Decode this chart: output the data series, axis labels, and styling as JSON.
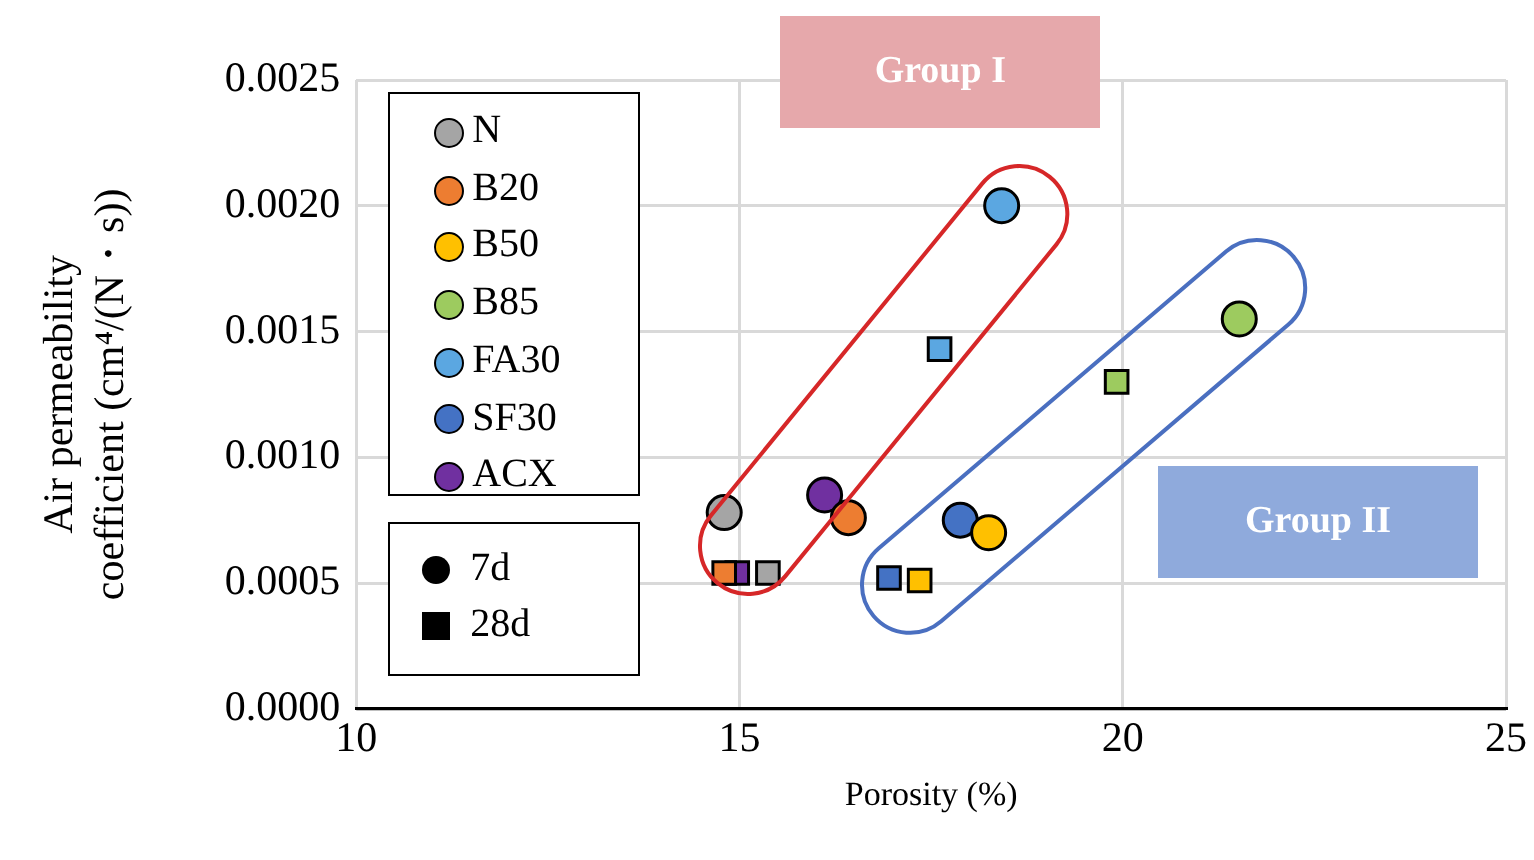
{
  "chart_data": {
    "type": "scatter",
    "xlabel": "Porosity (%)",
    "ylabel": "Air permeability\ncoefficient (cm⁴/(N・s))",
    "xlim": [
      10,
      25
    ],
    "xticks": [
      10,
      15,
      20,
      25
    ],
    "ylim": [
      0,
      0.0025
    ],
    "yticks": [
      {
        "value": 0,
        "label": "0.0000"
      },
      {
        "value": 0.0005,
        "label": "0.0005"
      },
      {
        "value": 0.001,
        "label": "0.0010"
      },
      {
        "value": 0.0015,
        "label": "0.0015"
      },
      {
        "value": 0.002,
        "label": "0.0020"
      },
      {
        "value": 0.0025,
        "label": "0.0025"
      }
    ],
    "grid": true,
    "legend": "top left",
    "annotations": [
      "Group I",
      "Group II",
      "7d",
      "28d"
    ],
    "series": [
      {
        "name": "N",
        "color": "#a5a5a5",
        "marker": "circle",
        "x": [
          14.8
        ],
        "values": [
          0.00078
        ]
      },
      {
        "name": "B20",
        "color": "#ed7d31",
        "marker": "circle",
        "x": [
          16.42
        ],
        "values": [
          0.00076
        ]
      },
      {
        "name": "B50",
        "color": "#ffc000",
        "marker": "circle",
        "x": [
          18.25
        ],
        "values": [
          0.0007
        ]
      },
      {
        "name": "B85",
        "color": "#9dcb5f",
        "marker": "circle",
        "x": [
          21.52
        ],
        "values": [
          0.00155
        ]
      },
      {
        "name": "FA30",
        "color": "#5ba7e1",
        "marker": "circle",
        "x": [
          18.42
        ],
        "values": [
          0.002
        ]
      },
      {
        "name": "SF30",
        "color": "#4472c4",
        "marker": "circle",
        "x": [
          17.88
        ],
        "values": [
          0.00075
        ]
      },
      {
        "name": "ACX",
        "color": "#7030a0",
        "marker": "circle",
        "x": [
          16.11
        ],
        "values": [
          0.00085
        ]
      },
      {
        "color": "#a5a5a5",
        "marker": "square",
        "x": [
          15.37
        ],
        "values": [
          0.00054
        ]
      },
      {
        "color": "#ed7d31",
        "marker": "square",
        "x": [
          14.8
        ],
        "values": [
          0.00054
        ]
      },
      {
        "color": "#ffc000",
        "marker": "square",
        "x": [
          17.35
        ],
        "values": [
          0.00051
        ]
      },
      {
        "color": "#9dcb5f",
        "marker": "square",
        "x": [
          19.92
        ],
        "values": [
          0.0013
        ]
      },
      {
        "color": "#5ba7e1",
        "marker": "square",
        "x": [
          17.61
        ],
        "values": [
          0.00143
        ]
      },
      {
        "color": "#4472c4",
        "marker": "square",
        "x": [
          16.95
        ],
        "values": [
          0.00052
        ]
      },
      {
        "color": "#7030a0",
        "marker": "square",
        "x": [
          14.97
        ],
        "values": [
          0.00054
        ]
      }
    ]
  }
}
